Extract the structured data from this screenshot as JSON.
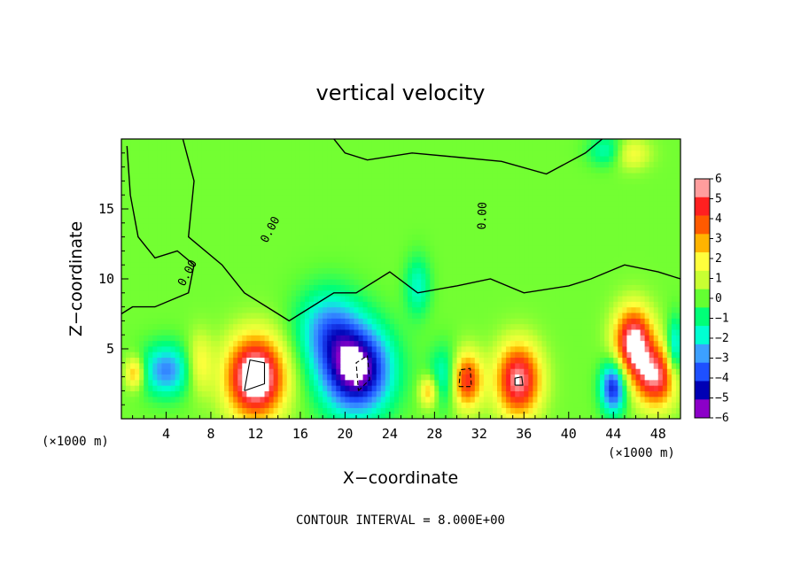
{
  "chart_data": {
    "type": "heatmap",
    "title": "vertical velocity",
    "xlabel": "X−coordinate",
    "ylabel": "Z−coordinate",
    "x_unit_left": "(×1000 m)",
    "x_unit_right": "(×1000 m)",
    "footer": "CONTOUR INTERVAL = 8.000E+00",
    "xlim": [
      0,
      50
    ],
    "ylim": [
      0,
      20
    ],
    "x_ticks": [
      4,
      8,
      12,
      16,
      20,
      24,
      28,
      32,
      36,
      40,
      44,
      48
    ],
    "y_ticks": [
      5,
      10,
      15
    ],
    "contour_label": "0.00",
    "colorbar": {
      "min": -6,
      "max": 6,
      "labels": [
        6,
        5,
        4,
        3,
        2,
        1,
        0,
        -1,
        -2,
        -3,
        -4,
        -5,
        -6
      ],
      "colors": [
        "#ff9d9d",
        "#ff2020",
        "#ff5a00",
        "#ffb400",
        "#ffff3c",
        "#c8ff32",
        "#64ff32",
        "#00ff78",
        "#00ffd2",
        "#3ca0ff",
        "#1e50ff",
        "#0000b4",
        "#8c00c8"
      ]
    },
    "features": [
      {
        "x": 12.0,
        "z": 3.0,
        "w": 7.5,
        "sx": 1.8,
        "sz": 2.0
      },
      {
        "x": 21.0,
        "z": 3.5,
        "w": -6.5,
        "sx": 2.2,
        "sz": 2.2
      },
      {
        "x": 18.5,
        "z": 6.5,
        "w": -3.0,
        "sx": 2.0,
        "sz": 2.0
      },
      {
        "x": 29.0,
        "z": 3.0,
        "w": -2.5,
        "sx": 1.0,
        "sz": 1.5
      },
      {
        "x": 30.8,
        "z": 2.8,
        "w": 5.0,
        "sx": 1.0,
        "sz": 1.4
      },
      {
        "x": 35.5,
        "z": 2.8,
        "w": 6.0,
        "sx": 1.4,
        "sz": 1.8
      },
      {
        "x": 44.0,
        "z": 2.3,
        "w": -5.0,
        "sx": 0.8,
        "sz": 1.3
      },
      {
        "x": 45.8,
        "z": 5.5,
        "w": 6.5,
        "sx": 1.2,
        "sz": 1.7
      },
      {
        "x": 47.8,
        "z": 3.0,
        "w": 5.5,
        "sx": 1.3,
        "sz": 1.5
      },
      {
        "x": 4.0,
        "z": 3.5,
        "w": -3.5,
        "sx": 1.5,
        "sz": 1.3
      },
      {
        "x": 7.0,
        "z": 4.0,
        "w": 2.0,
        "sx": 0.8,
        "sz": 1.5
      },
      {
        "x": 27.5,
        "z": 2.0,
        "w": 3.0,
        "sx": 0.6,
        "sz": 0.8
      },
      {
        "x": 1.2,
        "z": 3.3,
        "w": 3.0,
        "sx": 0.6,
        "sz": 0.8
      },
      {
        "x": 49.5,
        "z": 5.0,
        "w": -3.0,
        "sx": 0.5,
        "sz": 1.5
      },
      {
        "x": 26.5,
        "z": 9.5,
        "w": -2.0,
        "sx": 0.8,
        "sz": 1.5
      },
      {
        "x": 45.5,
        "z": 19.0,
        "w": 2.0,
        "sx": 1.2,
        "sz": 0.8
      },
      {
        "x": 43.5,
        "z": 19.2,
        "w": -2.0,
        "sx": 1.2,
        "sz": 0.8
      }
    ],
    "zero_contours": [
      [
        [
          0.5,
          19.5
        ],
        [
          0.8,
          16
        ],
        [
          1.5,
          13
        ],
        [
          3,
          11.5
        ],
        [
          5,
          12
        ],
        [
          6.5,
          11
        ],
        [
          6,
          9
        ],
        [
          3,
          8
        ],
        [
          1,
          8
        ],
        [
          0,
          7.5
        ]
      ],
      [
        [
          5.5,
          20
        ],
        [
          6.5,
          17
        ],
        [
          6,
          13
        ],
        [
          9,
          11
        ],
        [
          11,
          9
        ],
        [
          13,
          8
        ],
        [
          15,
          7
        ],
        [
          17,
          8
        ],
        [
          19,
          9
        ],
        [
          21,
          9
        ],
        [
          24,
          10.5
        ],
        [
          26.5,
          9
        ],
        [
          30,
          9.5
        ],
        [
          33,
          10
        ],
        [
          36,
          9
        ],
        [
          40,
          9.5
        ],
        [
          42,
          10
        ],
        [
          45,
          11
        ],
        [
          48,
          10.5
        ],
        [
          50,
          10
        ]
      ],
      [
        [
          19,
          20
        ],
        [
          20,
          19
        ],
        [
          22,
          18.5
        ],
        [
          26,
          19
        ],
        [
          30,
          18.7
        ],
        [
          34,
          18.4
        ],
        [
          38,
          17.5
        ],
        [
          41.5,
          19
        ],
        [
          43,
          20
        ]
      ]
    ],
    "neg_contours": [
      [
        [
          21.2,
          2.0
        ],
        [
          22.2,
          2.8
        ],
        [
          22.0,
          4.5
        ],
        [
          21.0,
          4.0
        ],
        [
          21.2,
          2.0
        ]
      ],
      [
        [
          30.2,
          2.3
        ],
        [
          31.3,
          2.3
        ],
        [
          31.2,
          3.6
        ],
        [
          30.3,
          3.5
        ],
        [
          30.2,
          2.3
        ]
      ]
    ],
    "pos_contours": [
      [
        [
          11.0,
          2.0
        ],
        [
          12.8,
          2.5
        ],
        [
          12.8,
          4.0
        ],
        [
          11.5,
          4.2
        ],
        [
          11.0,
          2.0
        ]
      ],
      [
        [
          35.2,
          2.4
        ],
        [
          35.9,
          2.4
        ],
        [
          35.8,
          3.0
        ],
        [
          35.2,
          2.9
        ],
        [
          35.2,
          2.4
        ]
      ]
    ]
  }
}
